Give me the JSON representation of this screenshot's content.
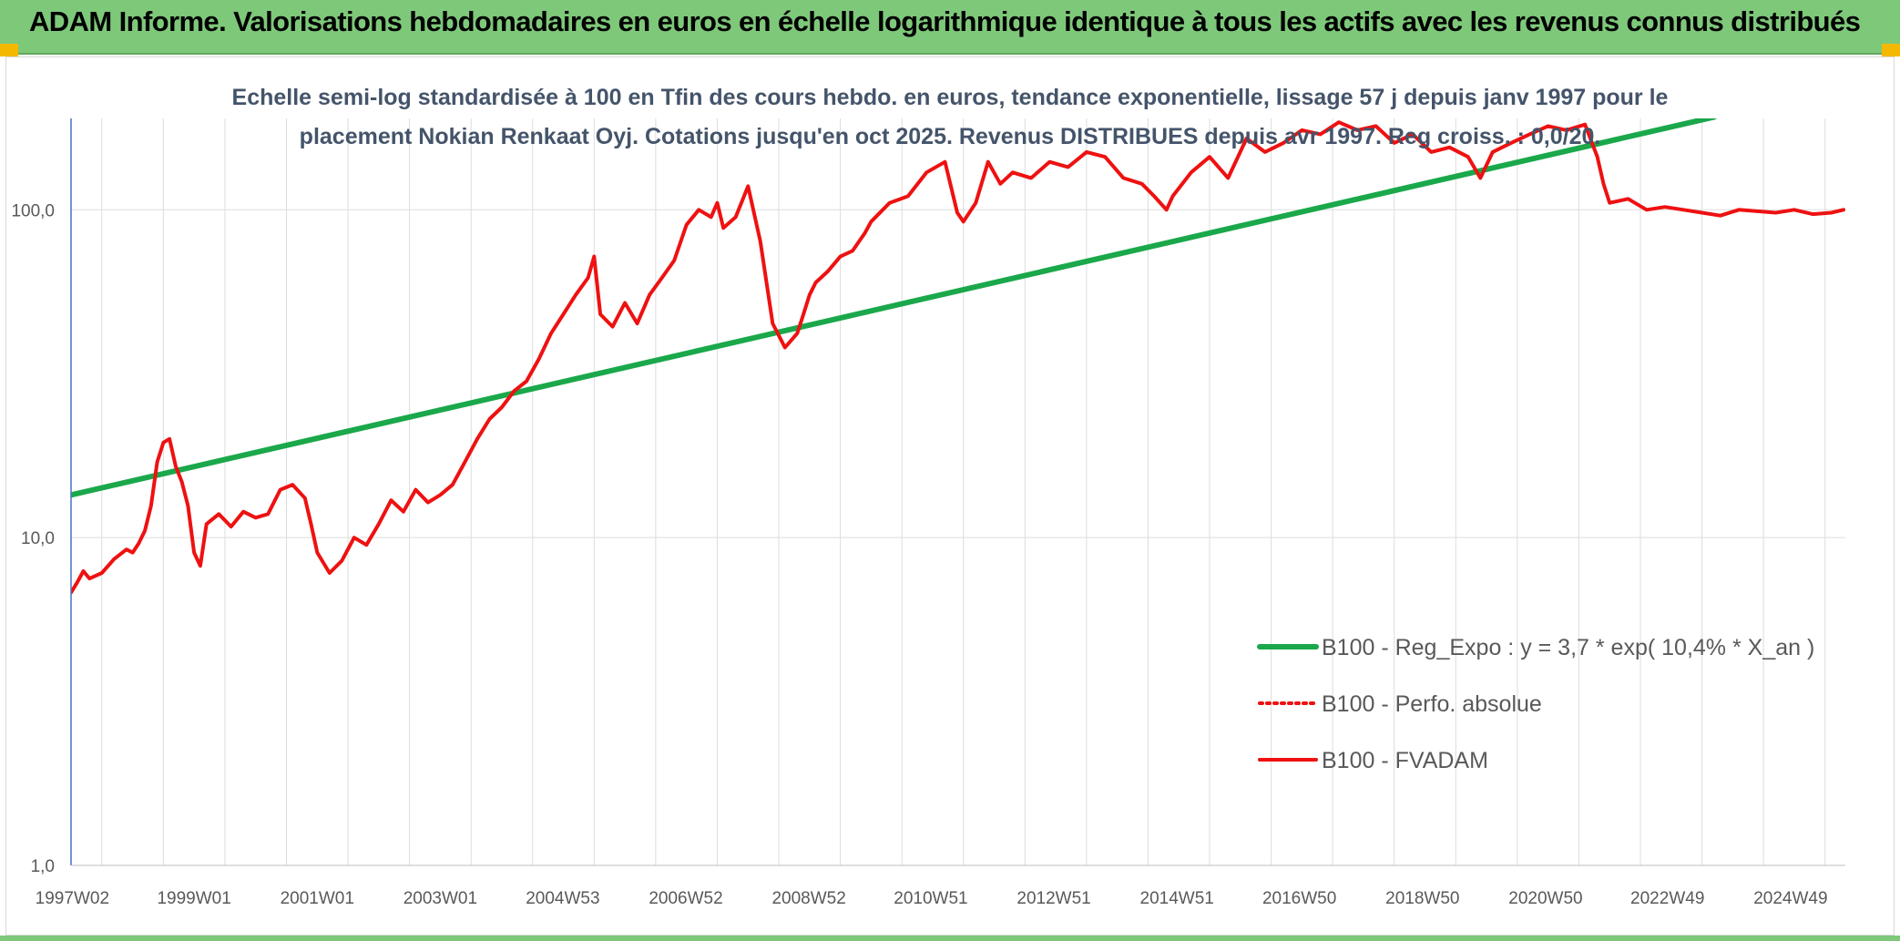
{
  "header": {
    "title": "ADAM Informe. Valorisations hebdomadaires en euros en échelle logarithmique identique à tous les actifs avec les revenus connus distribués"
  },
  "colors": {
    "header_bg": "#7ec87a",
    "corner_accent": "#f5b800",
    "trend_line": "#1aa84b",
    "fvadam_line": "#ee1111",
    "perf_line": "#ee1111",
    "grid": "#dddddd"
  },
  "chart_data": {
    "type": "line",
    "title_lines": [
      "Echelle semi-log standardisée à 100 en Tfin des cours hebdo. en euros, tendance exponentielle, lissage 57 j depuis janv 1997 pour le",
      "placement Nokian Renkaat Oyj. Cotations jusqu'en oct 2025. Revenus DISTRIBUES depuis avr 1997. Reg croiss. : 0,0/20."
    ],
    "y_scale": "log",
    "ylim": [
      1,
      190
    ],
    "y_ticks": [
      {
        "value": 1,
        "label": "1,0"
      },
      {
        "value": 10,
        "label": "10,0"
      },
      {
        "value": 100,
        "label": "100,0"
      }
    ],
    "xlim": [
      1997.0,
      2025.83
    ],
    "x_ticks": [
      {
        "value": 1997.02,
        "label": "1997W02"
      },
      {
        "value": 1999.0,
        "label": "1999W01"
      },
      {
        "value": 2001.0,
        "label": "2001W01"
      },
      {
        "value": 2003.0,
        "label": "2003W01"
      },
      {
        "value": 2004.99,
        "label": "2004W53"
      },
      {
        "value": 2006.99,
        "label": "2006W52"
      },
      {
        "value": 2008.99,
        "label": "2008W52"
      },
      {
        "value": 2010.97,
        "label": "2010W51"
      },
      {
        "value": 2012.97,
        "label": "2012W51"
      },
      {
        "value": 2014.97,
        "label": "2014W51"
      },
      {
        "value": 2016.96,
        "label": "2016W50"
      },
      {
        "value": 2018.96,
        "label": "2018W50"
      },
      {
        "value": 2020.96,
        "label": "2020W50"
      },
      {
        "value": 2022.94,
        "label": "2022W49"
      },
      {
        "value": 2024.94,
        "label": "2024W49"
      }
    ],
    "grid_x": [
      1997.5,
      1998.5,
      1999.5,
      2000.5,
      2001.5,
      2002.5,
      2003.5,
      2004.5,
      2005.5,
      2006.5,
      2007.5,
      2008.5,
      2009.5,
      2010.5,
      2011.5,
      2012.5,
      2013.5,
      2014.5,
      2015.5,
      2016.5,
      2017.5,
      2018.5,
      2019.5,
      2020.5,
      2021.5,
      2022.5,
      2023.5,
      2024.5,
      2025.5
    ],
    "legend": {
      "position": "lower-right",
      "entries": [
        {
          "label": "B100 - Reg_Expo : y = 3,7 * exp( 10,4% *  X_an )",
          "style": "solid-thick",
          "color": "#1aa84b"
        },
        {
          "label": "B100 - Perfo. absolue",
          "style": "dotted",
          "color": "#ee1111"
        },
        {
          "label": "B100 - FVADAM",
          "style": "solid",
          "color": "#ee1111"
        }
      ]
    },
    "series": [
      {
        "name": "B100 - Reg_Expo : y = 3,7 * exp( 10,4% *  X_an )",
        "color": "#1aa84b",
        "x": [
          1997.0,
          2023.7
        ],
        "y": [
          13.5,
          192
        ]
      },
      {
        "name": "B100 - FVADAM",
        "color": "#ee1111",
        "x": [
          1997.0,
          1997.1,
          1997.2,
          1997.3,
          1997.5,
          1997.7,
          1997.9,
          1998.0,
          1998.1,
          1998.2,
          1998.3,
          1998.4,
          1998.5,
          1998.6,
          1998.7,
          1998.8,
          1998.9,
          1999.0,
          1999.1,
          1999.2,
          1999.4,
          1999.6,
          1999.8,
          2000.0,
          2000.2,
          2000.4,
          2000.6,
          2000.8,
          2000.9,
          2001.0,
          2001.2,
          2001.4,
          2001.6,
          2001.8,
          2002.0,
          2002.2,
          2002.4,
          2002.6,
          2002.8,
          2003.0,
          2003.2,
          2003.4,
          2003.6,
          2003.8,
          2004.0,
          2004.2,
          2004.4,
          2004.6,
          2004.8,
          2005.0,
          2005.2,
          2005.4,
          2005.5,
          2005.6,
          2005.8,
          2006.0,
          2006.2,
          2006.4,
          2006.6,
          2006.8,
          2007.0,
          2007.2,
          2007.4,
          2007.5,
          2007.6,
          2007.8,
          2008.0,
          2008.2,
          2008.4,
          2008.6,
          2008.8,
          2008.9,
          2009.0,
          2009.1,
          2009.3,
          2009.5,
          2009.7,
          2009.9,
          2010.0,
          2010.3,
          2010.6,
          2010.9,
          2011.2,
          2011.4,
          2011.5,
          2011.7,
          2011.9,
          2012.1,
          2012.3,
          2012.6,
          2012.9,
          2013.2,
          2013.5,
          2013.8,
          2014.1,
          2014.4,
          2014.6,
          2014.8,
          2014.9,
          2015.2,
          2015.5,
          2015.8,
          2016.1,
          2016.4,
          2016.7,
          2017.0,
          2017.3,
          2017.6,
          2017.9,
          2018.2,
          2018.5,
          2018.8,
          2019.1,
          2019.4,
          2019.7,
          2019.9,
          2020.1,
          2020.4,
          2020.7,
          2021.0,
          2021.3,
          2021.6,
          2021.8,
          2021.9,
          2022.0,
          2022.3,
          2022.6,
          2022.9,
          2023.2,
          2023.5,
          2023.8,
          2024.1,
          2024.4,
          2024.7,
          2025.0,
          2025.3,
          2025.6,
          2025.8
        ],
        "y": [
          6.8,
          7.3,
          7.9,
          7.5,
          7.8,
          8.6,
          9.2,
          9.0,
          9.6,
          10.5,
          12.5,
          17.0,
          19.5,
          20.0,
          16.5,
          14.8,
          12.5,
          9.0,
          8.2,
          11.0,
          11.8,
          10.8,
          12.0,
          11.5,
          11.8,
          14.0,
          14.5,
          13.2,
          11.0,
          9.0,
          7.8,
          8.5,
          10.0,
          9.5,
          11.0,
          13.0,
          12.0,
          14.0,
          12.8,
          13.5,
          14.5,
          17.0,
          20.0,
          23.0,
          25.0,
          28.0,
          30.0,
          35.0,
          42.0,
          48.0,
          55.0,
          62.0,
          72.0,
          48.0,
          44.0,
          52.0,
          45.0,
          55.0,
          62.0,
          70.0,
          90.0,
          100.0,
          95.0,
          105.0,
          88.0,
          95.0,
          118.0,
          80.0,
          45.0,
          38.0,
          42.0,
          48.0,
          55.0,
          60.0,
          65.0,
          72.0,
          75.0,
          85.0,
          92.0,
          105.0,
          110.0,
          130.0,
          140.0,
          98.0,
          92.0,
          105.0,
          140.0,
          120.0,
          130.0,
          125.0,
          140.0,
          135.0,
          150.0,
          145.0,
          125.0,
          120.0,
          110.0,
          100.0,
          110.0,
          130.0,
          145.0,
          125.0,
          165.0,
          150.0,
          160.0,
          175.0,
          170.0,
          185.0,
          175.0,
          180.0,
          160.0,
          170.0,
          150.0,
          155.0,
          145.0,
          125.0,
          150.0,
          160.0,
          170.0,
          180.0,
          175.0,
          182.0,
          145.0,
          120.0,
          105.0,
          108.0,
          100.0,
          102.0,
          100.0,
          98.0,
          96.0,
          100.0,
          99.0,
          98.0,
          100.0,
          97.0,
          98.0,
          100.0
        ]
      },
      {
        "name": "B100 - Perfo. absolue",
        "color": "#ee1111",
        "x": [],
        "y": []
      }
    ]
  }
}
